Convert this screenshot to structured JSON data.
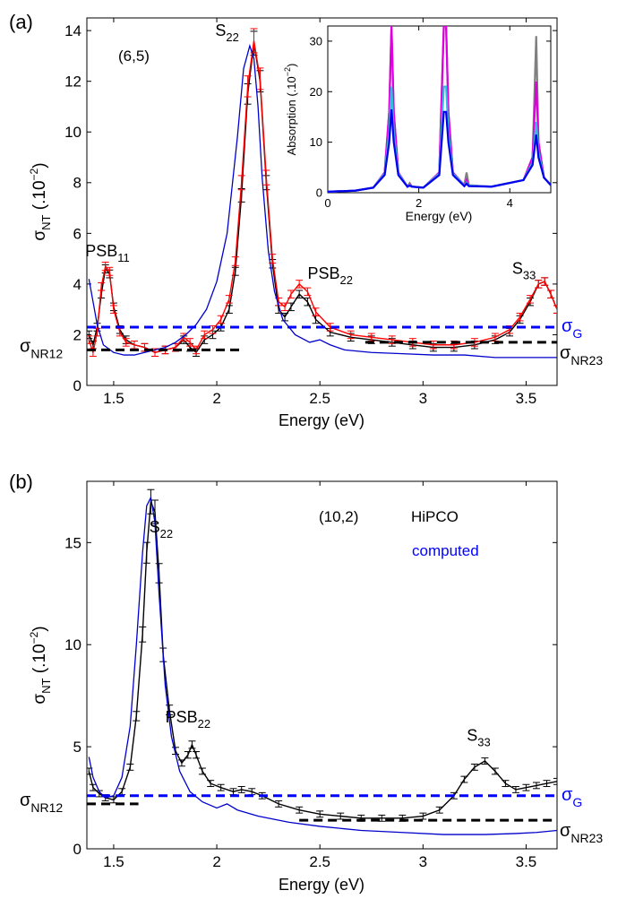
{
  "chart_data": [
    {
      "panel_label": "(a)",
      "type": "line",
      "tube_label": "(6,5)",
      "xlabel": "Energy (eV)",
      "ylabel_main": "σ",
      "ylabel_sub": "NT",
      "ylabel_unit": " (.10",
      "ylabel_exp": "−2",
      "ylabel_close": ")",
      "xlim": [
        1.37,
        3.65
      ],
      "ylim": [
        0,
        14.5
      ],
      "xticks": [
        1.5,
        2,
        2.5,
        3,
        3.5
      ],
      "xtick_labels": [
        "1.5",
        "2",
        "2.5",
        "3",
        "3.5"
      ],
      "yticks": [
        0,
        2,
        4,
        6,
        8,
        10,
        12,
        14
      ],
      "ytick_labels": [
        "0",
        "2",
        "4",
        "6",
        "8",
        "10",
        "12",
        "14"
      ],
      "peaks": [
        {
          "main": "PSB",
          "sub": "11",
          "x": 1.47,
          "y": 5.1
        },
        {
          "main": "S",
          "sub": "22",
          "x": 2.05,
          "y": 13.8
        },
        {
          "main": "PSB",
          "sub": "22",
          "x": 2.55,
          "y": 4.2
        },
        {
          "main": "S",
          "sub": "33",
          "x": 3.49,
          "y": 4.4
        }
      ],
      "sigma_G": {
        "main": "σ",
        "sub": "G",
        "value": 2.3,
        "color": "#0000ff"
      },
      "sigma_NR12": {
        "main": "σ",
        "sub": "NR12",
        "value": 1.4,
        "x_range": [
          1.37,
          2.12
        ]
      },
      "sigma_NR23": {
        "main": "σ",
        "sub": "NR23",
        "value": 1.7,
        "x_range": [
          2.72,
          3.65
        ]
      },
      "series": [
        {
          "color": "#000000",
          "style": "measured with error bars",
          "x": [
            1.38,
            1.4,
            1.42,
            1.44,
            1.46,
            1.48,
            1.5,
            1.53,
            1.56,
            1.6,
            1.65,
            1.7,
            1.75,
            1.8,
            1.84,
            1.87,
            1.9,
            1.94,
            1.98,
            2.02,
            2.06,
            2.09,
            2.12,
            2.15,
            2.18,
            2.21,
            2.24,
            2.27,
            2.3,
            2.33,
            2.36,
            2.4,
            2.44,
            2.48,
            2.55,
            2.65,
            2.75,
            2.85,
            2.95,
            3.05,
            3.15,
            3.25,
            3.35,
            3.42,
            3.47,
            3.52,
            3.56,
            3.59,
            3.62,
            3.65
          ],
          "y": [
            2.0,
            1.6,
            2.3,
            3.6,
            4.6,
            4.4,
            3.1,
            2.2,
            1.8,
            1.6,
            1.5,
            1.3,
            1.4,
            1.5,
            1.8,
            1.5,
            1.3,
            1.8,
            2.0,
            2.3,
            3.0,
            4.5,
            7.5,
            11.5,
            13.5,
            12.0,
            8.0,
            4.8,
            3.0,
            2.7,
            3.1,
            3.6,
            3.3,
            2.6,
            2.1,
            1.9,
            1.8,
            1.7,
            1.6,
            1.5,
            1.5,
            1.6,
            1.8,
            2.1,
            2.6,
            3.3,
            4.0,
            4.1,
            3.6,
            3.0
          ]
        },
        {
          "color": "#ff0000",
          "style": "measured with error bars",
          "x": [
            1.38,
            1.4,
            1.42,
            1.44,
            1.46,
            1.48,
            1.5,
            1.53,
            1.56,
            1.6,
            1.65,
            1.7,
            1.75,
            1.8,
            1.84,
            1.87,
            1.9,
            1.94,
            1.98,
            2.02,
            2.06,
            2.09,
            2.12,
            2.15,
            2.18,
            2.21,
            2.24,
            2.27,
            2.3,
            2.33,
            2.36,
            2.4,
            2.44,
            2.48,
            2.55,
            2.65,
            2.75,
            2.85,
            2.95,
            3.05,
            3.15,
            3.25,
            3.35,
            3.42,
            3.47,
            3.52,
            3.56,
            3.59,
            3.62,
            3.65
          ],
          "y": [
            1.8,
            1.3,
            2.1,
            3.9,
            4.7,
            4.5,
            3.0,
            2.1,
            1.7,
            1.6,
            1.5,
            1.3,
            1.4,
            1.5,
            1.9,
            1.7,
            1.4,
            2.0,
            2.2,
            2.6,
            3.4,
            4.9,
            8.0,
            11.8,
            13.6,
            12.1,
            8.2,
            5.0,
            3.3,
            3.1,
            3.6,
            4.0,
            3.7,
            2.9,
            2.3,
            2.0,
            1.9,
            1.8,
            1.7,
            1.6,
            1.6,
            1.7,
            1.9,
            2.2,
            2.7,
            3.4,
            4.0,
            4.1,
            3.6,
            3.0
          ]
        },
        {
          "color": "#0000cc",
          "style": "computed curve",
          "x": [
            1.38,
            1.4,
            1.42,
            1.45,
            1.5,
            1.55,
            1.6,
            1.65,
            1.7,
            1.75,
            1.8,
            1.85,
            1.9,
            1.95,
            2.0,
            2.05,
            2.1,
            2.13,
            2.16,
            2.18,
            2.2,
            2.22,
            2.25,
            2.28,
            2.32,
            2.38,
            2.45,
            2.5,
            2.55,
            2.62,
            2.75,
            2.9,
            3.05,
            3.2,
            3.35,
            3.5,
            3.65
          ],
          "y": [
            4.2,
            3.3,
            2.4,
            1.6,
            1.3,
            1.2,
            1.2,
            1.3,
            1.4,
            1.5,
            1.7,
            2.0,
            2.4,
            3.0,
            4.1,
            6.0,
            9.8,
            12.5,
            13.4,
            12.9,
            11.0,
            8.2,
            5.3,
            3.7,
            2.6,
            2.0,
            1.7,
            1.8,
            1.6,
            1.4,
            1.3,
            1.25,
            1.2,
            1.2,
            1.1,
            1.1,
            1.1
          ]
        }
      ],
      "inset": {
        "type": "line",
        "xlabel": "Energy (eV)",
        "ylabel_text": "Absorption (.10",
        "ylabel_exp": "−2",
        "ylabel_close": ")",
        "xlim": [
          0,
          4.9
        ],
        "ylim": [
          0,
          33
        ],
        "xticks": [
          0,
          2,
          4
        ],
        "xtick_labels": [
          "0",
          "2",
          "4"
        ],
        "yticks": [
          0,
          10,
          20,
          30
        ],
        "ytick_labels": [
          "0",
          "10",
          "20",
          "30"
        ],
        "series": [
          {
            "color": "#808080",
            "x": [
              0,
              0.6,
              1.0,
              1.25,
              1.35,
              1.4,
              1.45,
              1.55,
              1.75,
              1.8,
              1.85,
              2.1,
              2.45,
              2.55,
              2.6,
              2.65,
              2.75,
              3.0,
              3.05,
              3.1,
              3.6,
              4.3,
              4.5,
              4.58,
              4.63,
              4.75,
              4.9
            ],
            "y": [
              0.2,
              0.4,
              1.0,
              4.0,
              16,
              33,
              16,
              4.0,
              1.2,
              1.9,
              1.2,
              1.0,
              4.0,
              33,
              33,
              16,
              4.0,
              1.5,
              4.0,
              1.5,
              1.2,
              2.5,
              7.0,
              31,
              10,
              3.0,
              1.5
            ]
          },
          {
            "color": "#dd00dd",
            "x": [
              0,
              0.6,
              1.0,
              1.25,
              1.35,
              1.4,
              1.45,
              1.55,
              1.75,
              1.8,
              1.85,
              2.1,
              2.45,
              2.55,
              2.6,
              2.65,
              2.75,
              3.0,
              3.05,
              3.1,
              3.6,
              4.3,
              4.5,
              4.58,
              4.63,
              4.75,
              4.9
            ],
            "y": [
              0.2,
              0.4,
              1.0,
              4.0,
              16,
              33,
              16,
              4.0,
              1.2,
              1.6,
              1.2,
              1.0,
              4.0,
              33,
              33,
              16,
              4.0,
              1.4,
              2.5,
              1.4,
              1.2,
              2.5,
              7.0,
              22,
              10,
              3.0,
              1.5
            ]
          },
          {
            "color": "#33bbdd",
            "x": [
              0,
              0.6,
              1.0,
              1.25,
              1.35,
              1.4,
              1.45,
              1.55,
              1.75,
              1.8,
              1.85,
              2.1,
              2.45,
              2.55,
              2.6,
              2.65,
              2.75,
              3.0,
              3.05,
              3.1,
              3.6,
              4.3,
              4.5,
              4.58,
              4.63,
              4.75,
              4.9
            ],
            "y": [
              0.2,
              0.4,
              1.0,
              3.8,
              12,
              21,
              12,
              3.8,
              1.2,
              1.5,
              1.2,
              1.0,
              3.8,
              21,
              21,
              12,
              3.8,
              1.4,
              2.0,
              1.4,
              1.2,
              2.5,
              6.0,
              14,
              8.0,
              3.0,
              1.5
            ]
          },
          {
            "color": "#0000ee",
            "x": [
              0,
              0.6,
              1.0,
              1.25,
              1.35,
              1.4,
              1.45,
              1.55,
              1.75,
              1.8,
              1.85,
              2.1,
              2.45,
              2.55,
              2.6,
              2.65,
              2.75,
              3.0,
              3.05,
              3.1,
              3.6,
              4.3,
              4.5,
              4.58,
              4.63,
              4.75,
              4.9
            ],
            "y": [
              0.2,
              0.4,
              1.0,
              3.5,
              10,
              16.5,
              10,
              3.5,
              1.2,
              1.4,
              1.2,
              1.0,
              3.5,
              16,
              16,
              10,
              3.5,
              1.3,
              1.8,
              1.3,
              1.2,
              2.5,
              5.5,
              11.5,
              7.0,
              3.0,
              1.5
            ]
          }
        ]
      }
    },
    {
      "panel_label": "(b)",
      "type": "line",
      "tube_label": "(10,2)",
      "sample_label": "HiPCO",
      "computed_label": "computed",
      "computed_color": "#0000ff",
      "xlabel": "Energy (eV)",
      "ylabel_main": "σ",
      "ylabel_sub": "NT",
      "ylabel_unit": " (.10",
      "ylabel_exp": "−2",
      "ylabel_close": ")",
      "xlim": [
        1.37,
        3.65
      ],
      "ylim": [
        0,
        18
      ],
      "xticks": [
        1.5,
        2,
        2.5,
        3,
        3.5
      ],
      "xtick_labels": [
        "1.5",
        "2",
        "2.5",
        "3",
        "3.5"
      ],
      "yticks": [
        0,
        5,
        10,
        15
      ],
      "ytick_labels": [
        "0",
        "5",
        "10",
        "15"
      ],
      "peaks": [
        {
          "main": "S",
          "sub": "22",
          "x": 1.73,
          "y": 15.5
        },
        {
          "main": "PSB",
          "sub": "22",
          "x": 1.86,
          "y": 6.2
        },
        {
          "main": "S",
          "sub": "33",
          "x": 3.27,
          "y": 5.3
        }
      ],
      "sigma_G": {
        "main": "σ",
        "sub": "G",
        "value": 2.6,
        "color": "#0000ff"
      },
      "sigma_NR12": {
        "main": "σ",
        "sub": "NR12",
        "value": 2.2,
        "x_range": [
          1.37,
          1.62
        ]
      },
      "sigma_NR23": {
        "main": "σ",
        "sub": "NR23",
        "value": 1.4,
        "x_range": [
          2.4,
          3.65
        ]
      },
      "series": [
        {
          "color": "#000000",
          "style": "measured with error bars",
          "x": [
            1.38,
            1.4,
            1.43,
            1.46,
            1.5,
            1.54,
            1.58,
            1.61,
            1.64,
            1.66,
            1.68,
            1.7,
            1.72,
            1.74,
            1.77,
            1.8,
            1.83,
            1.86,
            1.88,
            1.9,
            1.93,
            1.97,
            2.02,
            2.08,
            2.12,
            2.17,
            2.22,
            2.3,
            2.4,
            2.5,
            2.6,
            2.7,
            2.8,
            2.9,
            3.0,
            3.08,
            3.15,
            3.2,
            3.25,
            3.3,
            3.35,
            3.4,
            3.45,
            3.5,
            3.55,
            3.6,
            3.65
          ],
          "y": [
            3.8,
            3.0,
            2.7,
            2.5,
            2.4,
            2.8,
            4.0,
            6.5,
            10.5,
            14.5,
            17.0,
            16.5,
            13.5,
            9.5,
            6.8,
            4.8,
            4.2,
            4.6,
            5.1,
            4.6,
            3.8,
            3.2,
            3.0,
            2.8,
            2.9,
            2.8,
            2.6,
            2.2,
            1.9,
            1.7,
            1.6,
            1.5,
            1.5,
            1.5,
            1.6,
            1.9,
            2.6,
            3.4,
            4.0,
            4.3,
            3.8,
            3.2,
            2.9,
            3.0,
            3.1,
            3.2,
            3.3
          ]
        },
        {
          "color": "#0000cc",
          "style": "computed curve",
          "x": [
            1.38,
            1.4,
            1.43,
            1.46,
            1.5,
            1.54,
            1.58,
            1.61,
            1.64,
            1.66,
            1.68,
            1.7,
            1.72,
            1.75,
            1.78,
            1.82,
            1.87,
            1.93,
            2.0,
            2.05,
            2.1,
            2.2,
            2.35,
            2.5,
            2.7,
            2.9,
            3.1,
            3.3,
            3.45,
            3.55,
            3.65
          ],
          "y": [
            4.5,
            3.5,
            2.8,
            2.5,
            2.6,
            3.5,
            6.0,
            10.0,
            14.5,
            16.8,
            17.2,
            16.0,
            12.5,
            8.0,
            5.5,
            3.8,
            2.8,
            2.3,
            2.0,
            2.2,
            1.9,
            1.6,
            1.3,
            1.1,
            0.9,
            0.8,
            0.7,
            0.7,
            0.75,
            0.8,
            0.9
          ]
        }
      ]
    }
  ]
}
